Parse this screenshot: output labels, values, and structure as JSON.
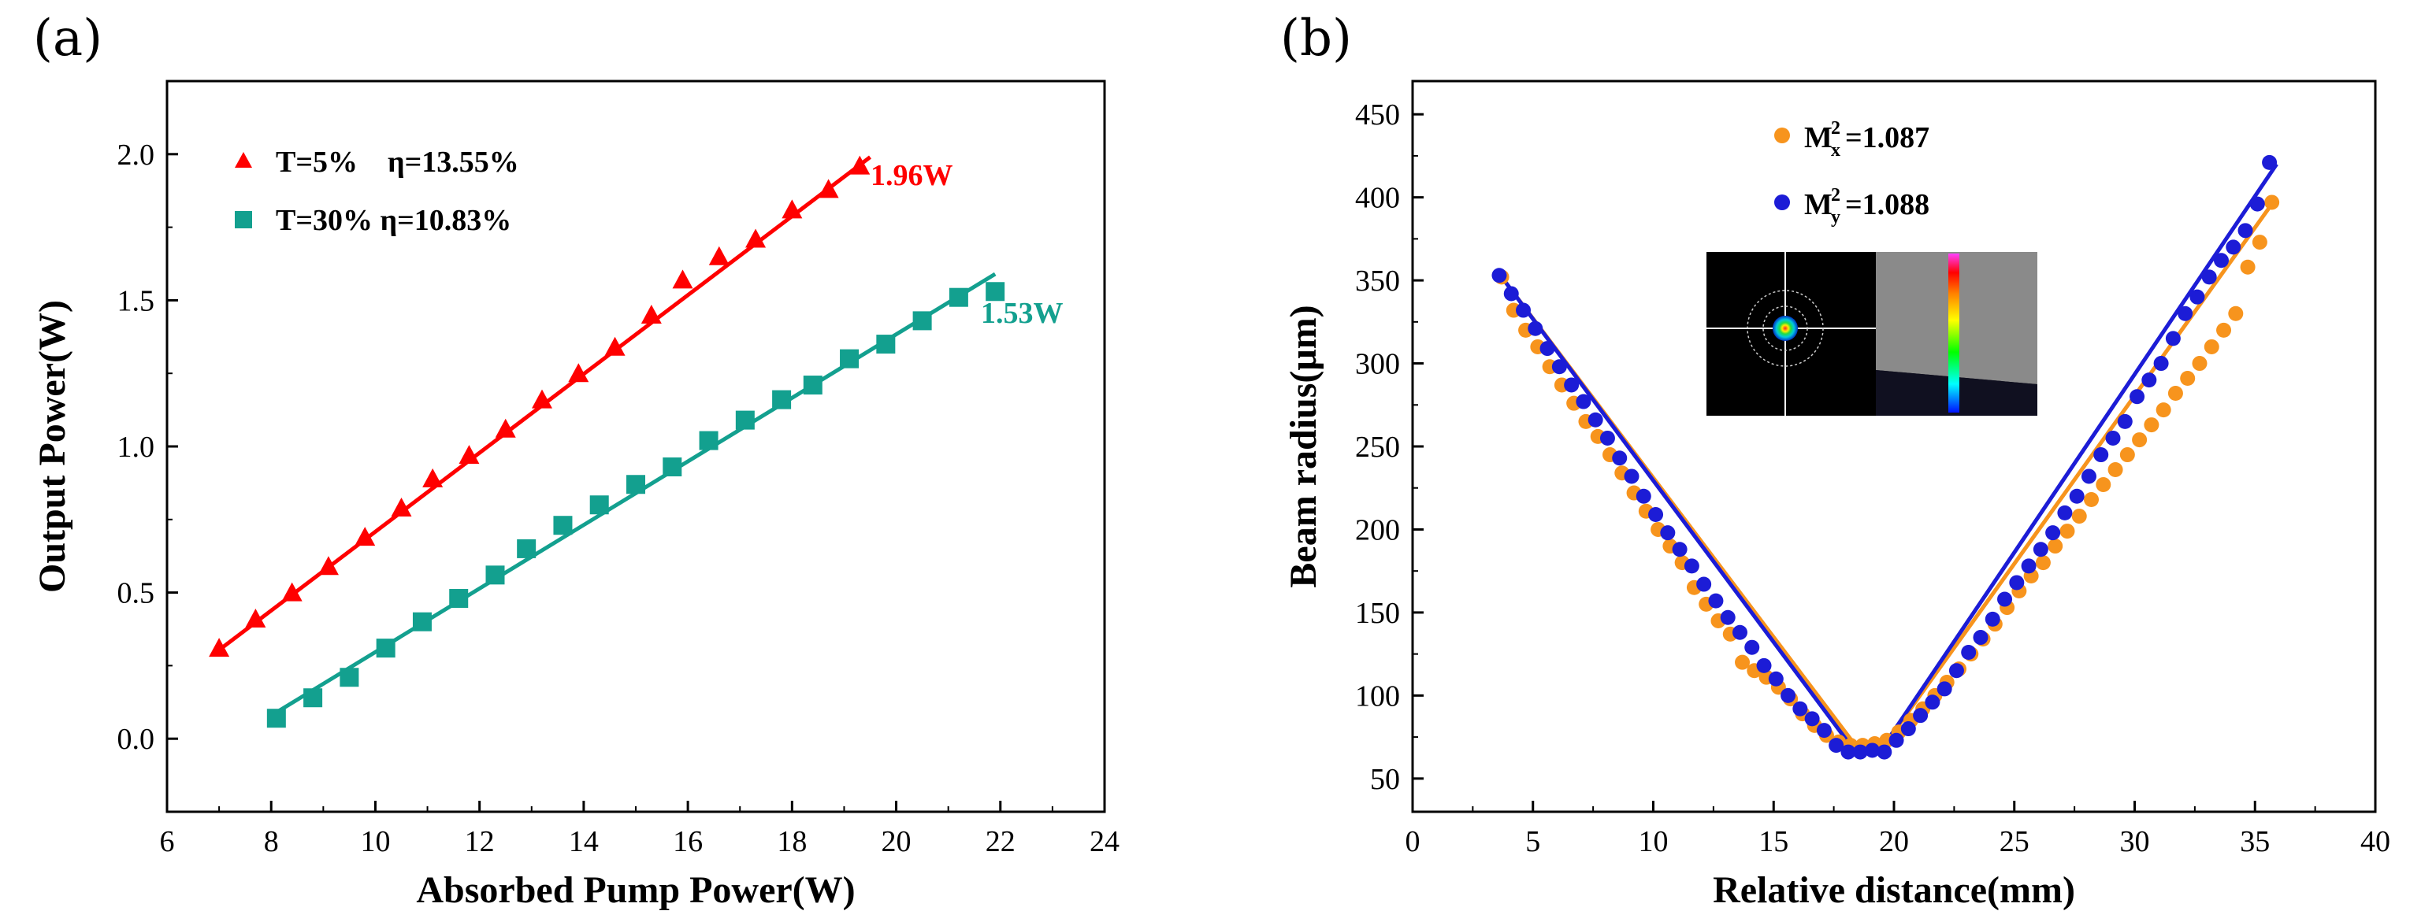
{
  "chart_data": [
    {
      "panel_label": "(a)",
      "type": "scatter",
      "xlabel": "Absorbed Pump Power(W)",
      "ylabel": "Output Power(W)",
      "xlim": [
        6,
        24
      ],
      "ylim": [
        -0.25,
        2.25
      ],
      "xticks": [
        6,
        8,
        10,
        12,
        14,
        16,
        18,
        20,
        22,
        24
      ],
      "xtick_labels": [
        "6",
        "8",
        "10",
        "12",
        "14",
        "16",
        "18",
        "20",
        "22",
        "24"
      ],
      "yticks": [
        0.0,
        0.5,
        1.0,
        1.5,
        2.0
      ],
      "ytick_labels": [
        "0.0",
        "0.5",
        "1.0",
        "1.5",
        "2.0"
      ],
      "series": [
        {
          "name": "T=5%",
          "legend": "T=5%    η=13.55%",
          "marker": "triangle",
          "color": "#ff0000",
          "x": [
            7.0,
            7.7,
            8.4,
            9.1,
            9.8,
            10.5,
            11.1,
            11.8,
            12.5,
            13.2,
            13.9,
            14.6,
            15.3,
            15.9,
            16.6,
            17.3,
            18.0,
            18.7,
            19.3
          ],
          "y": [
            0.31,
            0.41,
            0.5,
            0.59,
            0.69,
            0.79,
            0.89,
            0.97,
            1.06,
            1.16,
            1.25,
            1.34,
            1.45,
            1.57,
            1.65,
            1.71,
            1.81,
            1.88,
            1.96
          ],
          "fit": {
            "x": [
              6.9,
              19.5
            ],
            "y": [
              0.29,
              1.99
            ]
          },
          "annotation": "1.96W"
        },
        {
          "name": "T=30%",
          "legend": "T=30% η=10.83%",
          "marker": "square",
          "color": "#13a08f",
          "x": [
            8.1,
            8.8,
            9.5,
            10.2,
            10.9,
            11.6,
            12.3,
            12.9,
            13.6,
            14.3,
            15.0,
            15.7,
            16.4,
            17.1,
            17.8,
            18.4,
            19.1,
            19.8,
            20.5,
            21.2,
            21.9
          ],
          "y": [
            0.07,
            0.14,
            0.21,
            0.31,
            0.4,
            0.48,
            0.56,
            0.65,
            0.73,
            0.8,
            0.87,
            0.93,
            1.02,
            1.09,
            1.16,
            1.21,
            1.3,
            1.35,
            1.43,
            1.51,
            1.53
          ],
          "fit": {
            "x": [
              8.1,
              21.9
            ],
            "y": [
              0.09,
              1.59
            ]
          },
          "annotation": "1.53W"
        }
      ]
    },
    {
      "panel_label": "(b)",
      "type": "scatter",
      "xlabel": "Relative distance(mm)",
      "ylabel": "Beam radius(μm)",
      "xlim": [
        0,
        40
      ],
      "ylim": [
        30,
        470
      ],
      "xticks": [
        0,
        5,
        10,
        15,
        20,
        25,
        30,
        35,
        40
      ],
      "xtick_labels": [
        "0",
        "5",
        "10",
        "15",
        "20",
        "25",
        "30",
        "35",
        "40"
      ],
      "yticks": [
        50,
        100,
        150,
        200,
        250,
        300,
        350,
        400,
        450
      ],
      "ytick_labels": [
        "50",
        "100",
        "150",
        "200",
        "250",
        "300",
        "350",
        "400",
        "450"
      ],
      "series": [
        {
          "name": "Mx",
          "legend_base": "M",
          "legend_sub": "x",
          "legend_sup": "2",
          "legend_value": "=1.087",
          "marker": "circle",
          "color": "#f7941d",
          "x": [
            3.7,
            4.2,
            4.7,
            5.2,
            5.7,
            6.2,
            6.7,
            7.2,
            7.7,
            8.2,
            8.7,
            9.2,
            9.7,
            10.2,
            10.7,
            11.2,
            11.7,
            12.2,
            12.7,
            13.2,
            13.7,
            14.2,
            14.7,
            15.2,
            15.7,
            16.2,
            16.7,
            17.2,
            17.7,
            18.2,
            18.7,
            19.2,
            19.7,
            20.2,
            20.7,
            21.2,
            21.7,
            22.2,
            22.7,
            23.2,
            23.7,
            24.2,
            24.7,
            25.2,
            25.7,
            26.2,
            26.7,
            27.2,
            27.7,
            28.2,
            28.7,
            29.2,
            29.7,
            30.2,
            30.7,
            31.2,
            31.7,
            32.2,
            32.7,
            33.2,
            33.7,
            34.2,
            34.7,
            35.2,
            35.7
          ],
          "y": [
            352,
            332,
            320,
            310,
            298,
            287,
            276,
            265,
            256,
            245,
            234,
            222,
            211,
            200,
            190,
            180,
            165,
            155,
            145,
            137,
            120,
            115,
            111,
            105,
            98,
            89,
            82,
            76,
            72,
            70,
            70,
            71,
            73,
            78,
            85,
            92,
            100,
            108,
            116,
            125,
            134,
            143,
            153,
            163,
            172,
            180,
            190,
            199,
            208,
            218,
            227,
            236,
            245,
            254,
            263,
            272,
            282,
            291,
            300,
            310,
            320,
            330,
            358,
            373,
            397
          ],
          "fit": {
            "x": [
              3.7,
              18.5,
              19.5,
              35.9
            ],
            "y": [
              352,
              68,
              68,
              400
            ]
          }
        },
        {
          "name": "My",
          "legend_base": "M",
          "legend_sub": "y",
          "legend_sup": "2",
          "legend_value": "=1.088",
          "marker": "circle",
          "color": "#1c1cd6",
          "x": [
            3.6,
            4.1,
            4.6,
            5.1,
            5.6,
            6.1,
            6.6,
            7.1,
            7.6,
            8.1,
            8.6,
            9.1,
            9.6,
            10.1,
            10.6,
            11.1,
            11.6,
            12.1,
            12.6,
            13.1,
            13.6,
            14.1,
            14.6,
            15.1,
            15.6,
            16.1,
            16.6,
            17.1,
            17.6,
            18.1,
            18.6,
            19.1,
            19.6,
            20.1,
            20.6,
            21.1,
            21.6,
            22.1,
            22.6,
            23.1,
            23.6,
            24.1,
            24.6,
            25.1,
            25.6,
            26.1,
            26.6,
            27.1,
            27.6,
            28.1,
            28.6,
            29.1,
            29.6,
            30.1,
            30.6,
            31.1,
            31.6,
            32.1,
            32.6,
            33.1,
            33.6,
            34.1,
            34.6,
            35.1,
            35.6
          ],
          "y": [
            353,
            342,
            332,
            321,
            309,
            298,
            287,
            277,
            266,
            255,
            243,
            232,
            220,
            209,
            198,
            188,
            178,
            167,
            157,
            147,
            138,
            129,
            118,
            110,
            100,
            92,
            86,
            79,
            70,
            66,
            66,
            67,
            66,
            73,
            80,
            88,
            96,
            104,
            115,
            126,
            135,
            146,
            158,
            168,
            178,
            188,
            198,
            210,
            220,
            232,
            245,
            255,
            265,
            280,
            290,
            300,
            315,
            330,
            340,
            352,
            362,
            370,
            380,
            396,
            421
          ],
          "fit": {
            "x": [
              3.6,
              18.4,
              19.4,
              35.9
            ],
            "y": [
              354,
              66,
              66,
              420
            ]
          }
        }
      ]
    }
  ]
}
